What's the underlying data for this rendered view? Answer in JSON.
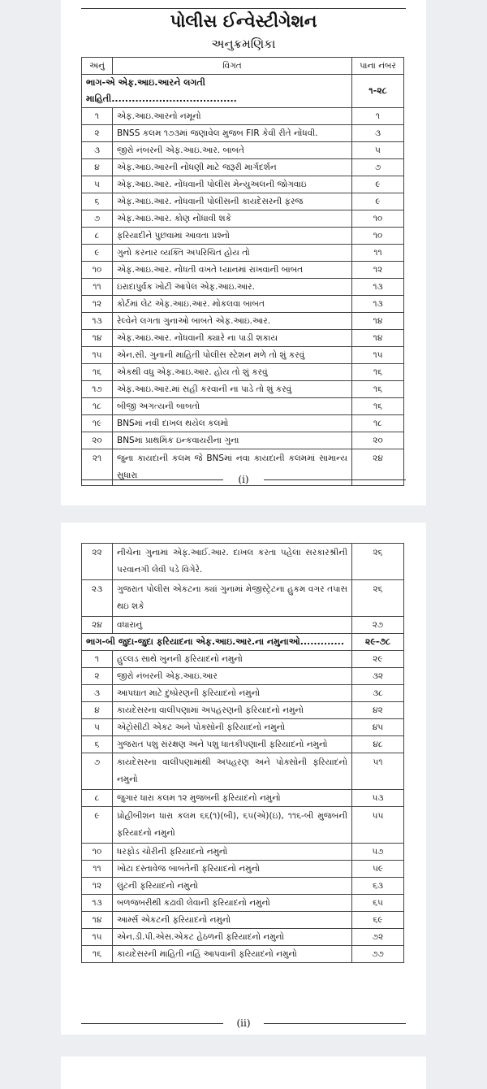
{
  "page1": {
    "title": "પોલીસ ઈન્વેસ્ટીગેશન",
    "subtitle": "અનુક્રમણિકા",
    "headers": {
      "no": "અનું",
      "detail": "વિગત",
      "page": "પાના નંબર"
    },
    "part": {
      "label": "ભાગ-એ  એફ.આઇ.આરને લગતી માહિતી.....................................",
      "pages": "૧-૨૮"
    },
    "rows": [
      {
        "no": "૧",
        "text": "એફ.આઇ.આરનો નમૂનો",
        "page": "૧"
      },
      {
        "no": "૨",
        "text": "BNSS કલમ ૧૭૩માં જણાવેલ મુજબ FIR કેવી રીતે નોંધવી.",
        "page": "૩"
      },
      {
        "no": "૩",
        "text": "જીરો નંબરની એફ.આઇ.આર. બાબતે",
        "page": "૫"
      },
      {
        "no": "૪",
        "text": "એફ.આઇ.આરની નોંધણી માટે જરૂરી માર્ગદર્શન",
        "page": "૭"
      },
      {
        "no": "૫",
        "text": "એફ.આઇ.આર. નોંધવાની પોલીસ મેન્યુઅલની જોગવાઇ",
        "page": "૯"
      },
      {
        "no": "૬",
        "text": "એફ.આઇ.આર. નોંધવાની પોલીસની કાયદેસરની ફરજ",
        "page": "૯"
      },
      {
        "no": "૭",
        "text": "એફ.આઇ.આર. કોણ નોંધાવી શકે",
        "page": "૧૦"
      },
      {
        "no": "૮",
        "text": "ફરિયાદીને પુછવામાં આવતા પ્રશ્નો",
        "page": "૧૦"
      },
      {
        "no": "૯",
        "text": "ગુનો કરનાર વ્યક્તિ અપરિચિત હોય તો",
        "page": "૧૧"
      },
      {
        "no": "૧૦",
        "text": "એફ.આઇ.આર. નોંધતી વખતે ધ્યાનમાં રાખવાની બાબત",
        "page": "૧૨"
      },
      {
        "no": "૧૧",
        "text": "ઇરાદાપુર્વક ખોટી આપેલ એફ.આઇ.આર.",
        "page": "૧૩"
      },
      {
        "no": "૧૨",
        "text": "કોર્ટમાં લેટ એફ.આઇ.આર. મોકલવા બાબત",
        "page": "૧૩"
      },
      {
        "no": "૧૩",
        "text": "રેલ્વેને લગતા ગુનાઓ બાબતે એફ.આઇ.આર.",
        "page": "૧૪"
      },
      {
        "no": "૧૪",
        "text": "એફ.આઇ.આર. નોંધવાની ક્યારે ના પાડી શકાય",
        "page": "૧૪"
      },
      {
        "no": "૧૫",
        "text": "એન.સી. ગુનાની માહિતી પોલીસ સ્ટેશન મળે તો શું કરવું",
        "page": "૧૫"
      },
      {
        "no": "૧૬",
        "text": "એકથી વધુ એફ.આઇ.આર. હોય તો શું કરવું",
        "page": "૧૬"
      },
      {
        "no": "૧૭",
        "text": "એફ.આઇ.આર.માં સહી કરવાની ના પાડે તો શું કરવું",
        "page": "૧૬"
      },
      {
        "no": "૧૮",
        "text": "બીજી અગત્યની બાબતો",
        "page": "૧૬"
      },
      {
        "no": "૧૯",
        "text": "BNSમાં નવી દાખલ થયેલ કલમો",
        "page": "૧૮"
      },
      {
        "no": "૨૦",
        "text": "BNSમાં પ્રાથમિક ઇન્કવાયરીના ગુના",
        "page": "૨૦"
      },
      {
        "no": "૨૧",
        "text": "જુના કાયદાની કલમ જે BNSમાં નવા કાયદાની કલમમાં સામાન્ય સુધારા",
        "page": "૨૪",
        "two": true
      }
    ],
    "footer": "(i)"
  },
  "page2": {
    "rows_a": [
      {
        "no": "૨૨",
        "text": "નીચેના ગુનામાં એફ.આઈ.આર. દાખલ કરતા પહેલા સરકારશ્રીની પરવાનગી લેવી પડે વિગેરે.",
        "page": "૨૬",
        "two": true
      },
      {
        "no": "૨૩",
        "text": "ગુજરાત પોલીસ એકટના ક્યાં ગુનામાં મેજીસ્ટ્રેટના હુકમ વગર તપાસ થઇ શકે",
        "page": "૨૬",
        "two": true
      },
      {
        "no": "૨૪",
        "text": "વધારાનું",
        "page": "૨૭"
      }
    ],
    "part": {
      "label": "ભાગ-બી જુદા-જુદા ફરિયાદના એફ.આઇ.આર.ના નમુનાઓ.............",
      "pages": "૨૯-૭૮"
    },
    "rows_b": [
      {
        "no": "૧",
        "text": "હુલ્લડ સાથે ખુનની ફરિયાદનો નમુનો",
        "page": "૨૯"
      },
      {
        "no": "૨",
        "text": "જીરો નંબરની એફ.આઇ.આર",
        "page": "૩૨"
      },
      {
        "no": "૩",
        "text": "આપઘાત માટે દુષ્પ્રેરણની ફરિયાદનો નમુનો",
        "page": "૩૮"
      },
      {
        "no": "૪",
        "text": "કાયદેસરના વાલીપણામાં અપહરણની ફરિયાદનો નમુનો",
        "page": "૪૨"
      },
      {
        "no": "૫",
        "text": "એટ્રોસીટી એકટ અને પોક્સોની ફરિયાદનો નમુનો",
        "page": "૪૫"
      },
      {
        "no": "૬",
        "text": "ગુજરાત પશુ સંરક્ષણ અને પશુ ધાતકીપણાની ફરિયાદનો નમુનો",
        "page": "૪૮"
      },
      {
        "no": "૭",
        "text": "કાયદેસરના વાલીપણામાંથી અપહરણ અને પોક્સોની ફરિયાદનો નમુનો",
        "page": "૫૧",
        "two": true
      },
      {
        "no": "૮",
        "text": "જુગાર ધારા કલમ ૧૨ મુજબની ફરિયાદનો નમુનો",
        "page": "૫૩"
      },
      {
        "no": "૯",
        "text": "પ્રોહીબીશન ધારા કલમ ૬૬(૧)(બી), ૬૫(એ)(ઇ), ૧૧૬-બી મુજબની ફરિયાદનો નમુનો",
        "page": "૫૫",
        "two": true
      },
      {
        "no": "૧૦",
        "text": "ધરફોડ ચોરીની ફરિયાદનો નમુનો",
        "page": "૫૭"
      },
      {
        "no": "૧૧",
        "text": "ખોટા દસ્તાવેજ બાબતેની ફરિયાદનો નમુનો",
        "page": "૫૯"
      },
      {
        "no": "૧૨",
        "text": "લુંટની ફરિયાદનો નમુનો",
        "page": "૬૩"
      },
      {
        "no": "૧૩",
        "text": "બળજબરીથી કઢાવી લેવાની ફરિયાદનો નમુનો",
        "page": "૬૫"
      },
      {
        "no": "૧૪",
        "text": "આર્મ્સ એકટની ફરિયાદનો નમુનો",
        "page": "૬૯"
      },
      {
        "no": "૧૫",
        "text": "એન.ડી.પી.એસ.એકટ હેઠળની ફરિયાદનો નમુનો",
        "page": "૭૨"
      },
      {
        "no": "૧૬",
        "text": "કાયદેસરની માહિતી નહિં આપવાની ફરિયાદનો નમુનો",
        "page": "૭૭"
      }
    ],
    "footer": "(ii)"
  }
}
